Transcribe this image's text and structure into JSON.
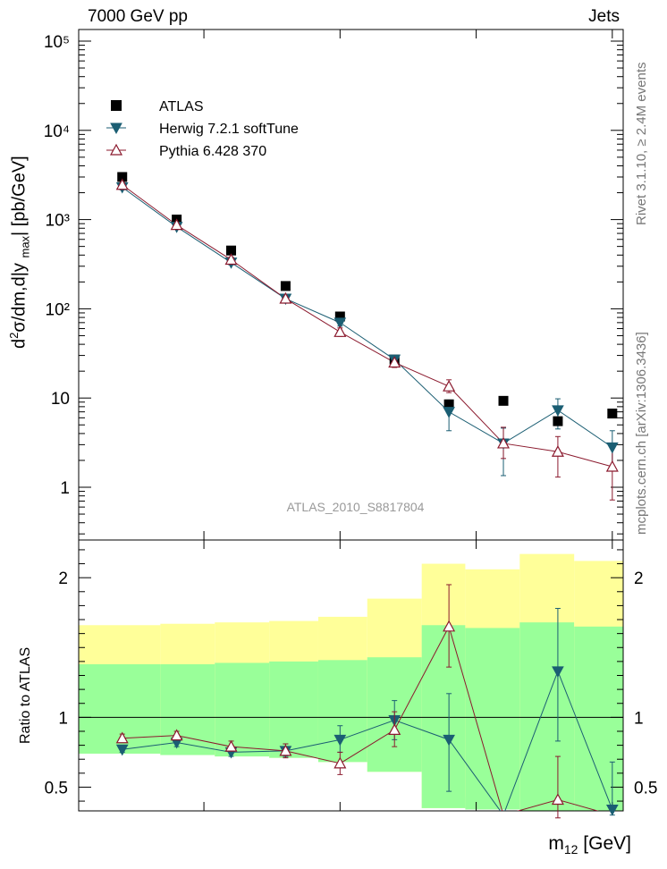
{
  "header": {
    "left": "7000 GeV pp",
    "right": "Jets"
  },
  "side": {
    "rivet": "Rivet 3.1.10, ≥ 2.4M events",
    "mcplots": "mcplots.cern.ch [arXiv:1306.3436]"
  },
  "axes": {
    "xlabel_main": "m",
    "xlabel_sub": "12",
    "xlabel_unit": " [GeV]",
    "ylabel_main": "d²σ/dm,d|y_max| [pb/GeV]",
    "ylabel_ratio": "Ratio to ATLAS"
  },
  "colors": {
    "data": "#000000",
    "herwig": "#1b5e73",
    "pythia": "#8b1a2e",
    "band_outer": "#ffff99",
    "band_inner": "#99ff99"
  },
  "chart_data": [
    {
      "type": "scatter",
      "title": "ATLAS_2010_S8817804",
      "xlabel": "m12 [GeV]",
      "ylabel": "d2sigma/dm,d|ymax| [pb/GeV]",
      "yscale": "log",
      "ylim": [
        0.3,
        150000
      ],
      "ytick_labels": [
        "1",
        "10",
        "10²",
        "10³",
        "10⁴",
        "10⁵"
      ],
      "legend_position": "top-left",
      "x_points": [
        1,
        2,
        3,
        4,
        5,
        6,
        7,
        8,
        9,
        10
      ],
      "series": [
        {
          "name": "ATLAS",
          "marker": "square",
          "values": [
            3000,
            1000,
            450,
            180,
            82,
            27,
            8.5,
            9.3,
            5.5,
            6.7
          ]
        },
        {
          "name": "Herwig 7.2.1 softTune",
          "marker": "triangle-down",
          "values": [
            2300,
            830,
            330,
            130,
            70,
            27,
            7,
            3.1,
            7.3,
            2.8
          ],
          "err_lo": [
            2150,
            790,
            310,
            122,
            64,
            24,
            4.3,
            1.35,
            4.5,
            1.65
          ],
          "err_hi": [
            2450,
            870,
            350,
            138,
            76,
            30,
            9.5,
            4.6,
            9.8,
            4.3
          ]
        },
        {
          "name": "Pythia 6.428 370",
          "marker": "triangle-up-open",
          "values": [
            2450,
            870,
            355,
            130,
            55,
            25,
            13.5,
            3.1,
            2.5,
            1.7
          ],
          "err_lo": [
            2300,
            820,
            330,
            121,
            49,
            22,
            11.5,
            2.1,
            1.3,
            0.72
          ],
          "err_hi": [
            2600,
            920,
            380,
            139,
            61,
            28,
            16,
            4.7,
            3.7,
            2.95
          ]
        }
      ]
    },
    {
      "type": "line",
      "ylabel": "Ratio to ATLAS",
      "ylim": [
        0.33,
        2.27
      ],
      "ytick_labels": [
        "0.5",
        "1",
        "2"
      ],
      "bin_edges": [
        0.2,
        1.7,
        2.7,
        3.7,
        4.6,
        5.5,
        6.5,
        7.3,
        8.3,
        9.3,
        10.2
      ],
      "band_outer": {
        "lo": [
          0.74,
          0.73,
          0.72,
          0.71,
          0.68,
          0.61,
          0.35,
          0.43,
          0.35,
          0.35
        ],
        "hi": [
          1.66,
          1.67,
          1.68,
          1.69,
          1.72,
          1.85,
          2.1,
          2.06,
          2.17,
          2.12
        ]
      },
      "band_inner": {
        "lo": [
          0.74,
          0.73,
          0.72,
          0.71,
          0.68,
          0.61,
          0.35,
          0.34,
          0.33,
          0.33
        ],
        "hi": [
          1.38,
          1.38,
          1.39,
          1.4,
          1.41,
          1.43,
          1.66,
          1.64,
          1.68,
          1.65
        ]
      },
      "series": [
        {
          "name": "Herwig 7.2.1 softTune",
          "marker": "triangle-down",
          "values": [
            0.77,
            0.82,
            0.75,
            0.76,
            0.84,
            0.98,
            0.84,
            0.3,
            1.33,
            0.34
          ],
          "err_lo": [
            0.75,
            0.79,
            0.72,
            0.72,
            0.75,
            0.84,
            0.47,
            0.3,
            0.83,
            0.3
          ],
          "err_hi": [
            0.79,
            0.85,
            0.79,
            0.81,
            0.94,
            1.12,
            1.17,
            0.3,
            1.78,
            0.68
          ]
        },
        {
          "name": "Pythia 6.428 370",
          "marker": "triangle-up-open",
          "values": [
            0.85,
            0.87,
            0.79,
            0.76,
            0.67,
            0.91,
            1.65,
            0.3,
            0.41,
            0.3
          ],
          "err_lo": [
            0.82,
            0.84,
            0.76,
            0.71,
            0.59,
            0.79,
            1.36,
            0.3,
            0.28,
            0.3
          ],
          "err_hi": [
            0.88,
            0.9,
            0.83,
            0.81,
            0.75,
            1.04,
            1.95,
            0.3,
            0.72,
            0.3
          ]
        }
      ]
    }
  ],
  "legend": [
    {
      "label": "ATLAS"
    },
    {
      "label": "Herwig 7.2.1 softTune"
    },
    {
      "label": "Pythia 6.428 370"
    }
  ]
}
